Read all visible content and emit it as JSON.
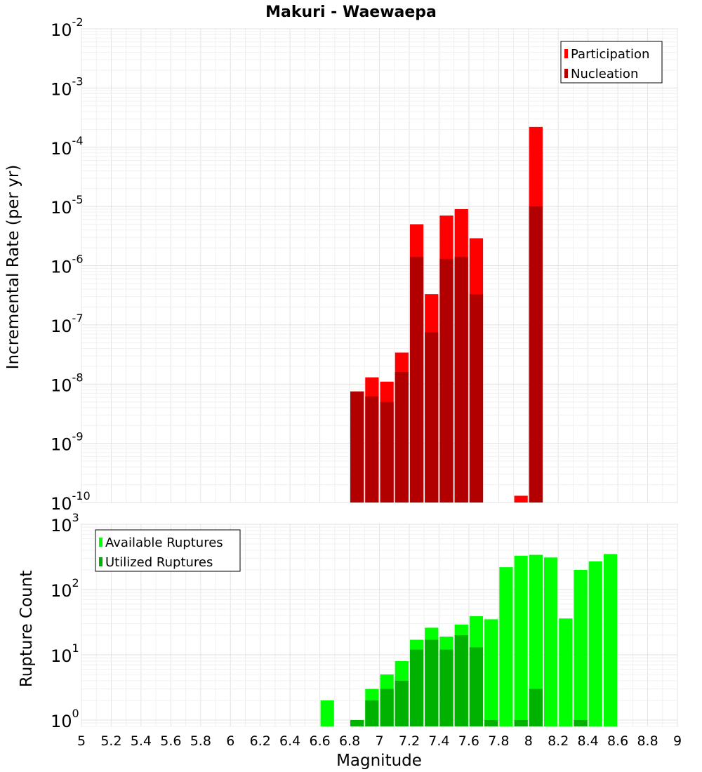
{
  "chart_data": [
    {
      "type": "bar",
      "title": "Makuri - Waewaepa",
      "xlabel": "",
      "ylabel": "Incremental Rate (per yr)",
      "xlim": [
        5,
        9
      ],
      "ylim": [
        1e-10,
        0.01
      ],
      "yscale": "log",
      "bar_width": 0.1,
      "grid": true,
      "legend_position": "top-right",
      "y_ticks": [
        {
          "base": "10",
          "exp": "-10",
          "value": 1e-10
        },
        {
          "base": "10",
          "exp": "-9",
          "value": 1e-09
        },
        {
          "base": "10",
          "exp": "-8",
          "value": 1e-08
        },
        {
          "base": "10",
          "exp": "-7",
          "value": 1e-07
        },
        {
          "base": "10",
          "exp": "-6",
          "value": 1e-06
        },
        {
          "base": "10",
          "exp": "-5",
          "value": 1e-05
        },
        {
          "base": "10",
          "exp": "-4",
          "value": 0.0001
        },
        {
          "base": "10",
          "exp": "-3",
          "value": 0.001
        },
        {
          "base": "10",
          "exp": "-2",
          "value": 0.01
        }
      ],
      "series": [
        {
          "name": "Participation",
          "color": "#ff0000",
          "points": [
            {
              "x": 6.85,
              "y": 7.5e-09
            },
            {
              "x": 6.95,
              "y": 1.3e-08
            },
            {
              "x": 7.05,
              "y": 1.1e-08
            },
            {
              "x": 7.15,
              "y": 3.4e-08
            },
            {
              "x": 7.25,
              "y": 5e-06
            },
            {
              "x": 7.35,
              "y": 3.3e-07
            },
            {
              "x": 7.45,
              "y": 7e-06
            },
            {
              "x": 7.55,
              "y": 9e-06
            },
            {
              "x": 7.65,
              "y": 2.9e-06
            },
            {
              "x": 7.95,
              "y": 1.3e-10
            },
            {
              "x": 8.05,
              "y": 0.00022
            }
          ]
        },
        {
          "name": "Nucleation",
          "color": "#b20000",
          "points": [
            {
              "x": 6.85,
              "y": 7.5e-09
            },
            {
              "x": 6.95,
              "y": 6.2e-09
            },
            {
              "x": 7.05,
              "y": 5e-09
            },
            {
              "x": 7.15,
              "y": 1.6e-08
            },
            {
              "x": 7.25,
              "y": 1.4e-06
            },
            {
              "x": 7.35,
              "y": 7.5e-08
            },
            {
              "x": 7.45,
              "y": 1.3e-06
            },
            {
              "x": 7.55,
              "y": 1.4e-06
            },
            {
              "x": 7.65,
              "y": 3.3e-07
            },
            {
              "x": 8.05,
              "y": 1e-05
            }
          ]
        }
      ]
    },
    {
      "type": "bar",
      "title": "",
      "xlabel": "Magnitude",
      "ylabel": "Rupture Count",
      "xlim": [
        5,
        9
      ],
      "ylim": [
        0.8,
        1000
      ],
      "yscale": "log",
      "bar_width": 0.1,
      "grid": true,
      "legend_position": "top-left",
      "x_ticks": [
        "5",
        "5.2",
        "5.4",
        "5.6",
        "5.8",
        "6",
        "6.2",
        "6.4",
        "6.6",
        "6.8",
        "7",
        "7.2",
        "7.4",
        "7.6",
        "7.8",
        "8",
        "8.2",
        "8.4",
        "8.6",
        "8.8",
        "9"
      ],
      "y_ticks": [
        {
          "base": "10",
          "exp": "0",
          "value": 1
        },
        {
          "base": "10",
          "exp": "1",
          "value": 10
        },
        {
          "base": "10",
          "exp": "2",
          "value": 100
        },
        {
          "base": "10",
          "exp": "3",
          "value": 1000
        }
      ],
      "series": [
        {
          "name": "Available Ruptures",
          "color": "#00ff00",
          "points": [
            {
              "x": 6.65,
              "y": 2
            },
            {
              "x": 6.85,
              "y": 1
            },
            {
              "x": 6.95,
              "y": 3
            },
            {
              "x": 7.05,
              "y": 5
            },
            {
              "x": 7.15,
              "y": 8
            },
            {
              "x": 7.25,
              "y": 17
            },
            {
              "x": 7.35,
              "y": 26
            },
            {
              "x": 7.45,
              "y": 19
            },
            {
              "x": 7.55,
              "y": 29
            },
            {
              "x": 7.65,
              "y": 39
            },
            {
              "x": 7.75,
              "y": 35
            },
            {
              "x": 7.85,
              "y": 220
            },
            {
              "x": 7.95,
              "y": 330
            },
            {
              "x": 8.05,
              "y": 340
            },
            {
              "x": 8.15,
              "y": 310
            },
            {
              "x": 8.25,
              "y": 36
            },
            {
              "x": 8.35,
              "y": 200
            },
            {
              "x": 8.45,
              "y": 270
            },
            {
              "x": 8.55,
              "y": 350
            }
          ]
        },
        {
          "name": "Utilized Ruptures",
          "color": "#00b200",
          "points": [
            {
              "x": 6.85,
              "y": 1
            },
            {
              "x": 6.95,
              "y": 2
            },
            {
              "x": 7.05,
              "y": 3
            },
            {
              "x": 7.15,
              "y": 4
            },
            {
              "x": 7.25,
              "y": 12
            },
            {
              "x": 7.35,
              "y": 17
            },
            {
              "x": 7.45,
              "y": 12
            },
            {
              "x": 7.55,
              "y": 20
            },
            {
              "x": 7.65,
              "y": 13
            },
            {
              "x": 7.75,
              "y": 1
            },
            {
              "x": 7.95,
              "y": 1
            },
            {
              "x": 8.05,
              "y": 3
            },
            {
              "x": 8.35,
              "y": 1
            }
          ]
        }
      ]
    }
  ]
}
